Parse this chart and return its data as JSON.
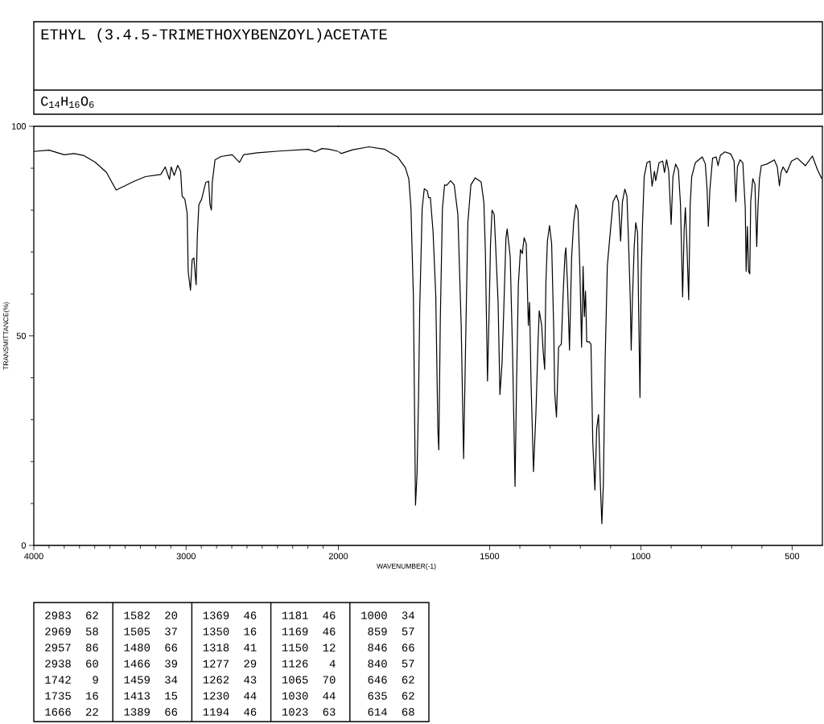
{
  "chart_data": [
    {
      "type": "line",
      "title": "ETHYL (3.4.5-TRIMETHOXYBENZOYL)ACETATE",
      "subtitle": "C$_{14}$H$_{16}$O$_{6}$",
      "ylabel": "TRANSMITTANCE(%)",
      "xlim": [
        4000,
        2000
      ],
      "ylim": [
        0,
        100
      ],
      "xticks": [
        4000,
        3000,
        2000
      ],
      "yticks": [
        0,
        50,
        100
      ],
      "marker": "none",
      "line_style": "solid",
      "series": [
        {
          "color": "#000000",
          "x": [
            4000,
            3900,
            3800,
            3736,
            3670,
            3596,
            3523,
            3459,
            3413,
            3340,
            3266,
            3166,
            3137,
            3109,
            3098,
            3078,
            3055,
            3036,
            3026,
            3008,
            2993,
            2986,
            2971,
            2960,
            2949,
            2934,
            2926,
            2916,
            2898,
            2871,
            2852,
            2843,
            2834,
            2828,
            2810,
            2770,
            2697,
            2649,
            2623,
            2530,
            2383,
            2199,
            2153,
            2107,
            2058,
            2000
          ],
          "values": [
            94.0,
            94.3,
            93.2,
            93.5,
            93.0,
            91.4,
            89.0,
            84.8,
            85.6,
            86.9,
            88.0,
            88.5,
            90.3,
            87.3,
            90.3,
            88.3,
            90.7,
            89.3,
            83.3,
            82.6,
            79.3,
            65.3,
            60.9,
            68.2,
            68.6,
            62.2,
            73.9,
            81.3,
            82.6,
            86.6,
            86.9,
            81.3,
            80.0,
            86.6,
            92.0,
            92.8,
            93.2,
            91.4,
            93.2,
            93.7,
            94.1,
            94.5,
            93.9,
            94.7,
            94.5,
            94.0
          ]
        }
      ],
      "annotations": [
        "2983",
        "62",
        "2969",
        "58",
        "2957",
        "86",
        "2938",
        "60",
        "1742",
        "9",
        "1735",
        "16",
        "1666",
        "22",
        "1582",
        "20",
        "1505",
        "37",
        "1480",
        "66",
        "1466",
        "39",
        "1459",
        "34",
        "1413",
        "15",
        "1389",
        "66",
        "1369",
        "46",
        "1350",
        "16",
        "1318",
        "41",
        "1277",
        "29",
        "1262",
        "43",
        "1230",
        "44",
        "1194",
        "46",
        "1181",
        "46",
        "1169",
        "46",
        "1150",
        "12",
        "1126",
        "4",
        "1065",
        "70",
        "1030",
        "44",
        "1023",
        "63",
        "1000",
        "34",
        "859",
        "57",
        "846",
        "66",
        "840",
        "57",
        "646",
        "62",
        "635",
        "62",
        "614",
        "68"
      ]
    },
    {
      "type": "line",
      "xlabel": "WAVENUMBER(-1)",
      "xlim": [
        2000,
        400
      ],
      "ylim": [
        0,
        100
      ],
      "xticks": [
        1500,
        1000,
        500
      ],
      "tick_labels": "x",
      "marker": "none",
      "line_style": "solid",
      "series": [
        {
          "color": "#000000",
          "x": [
            2000,
            1991,
            1952,
            1899,
            1846,
            1803,
            1779,
            1767,
            1760,
            1752,
            1745,
            1740,
            1735,
            1731,
            1723,
            1716,
            1706,
            1702,
            1696,
            1687,
            1678,
            1671,
            1668,
            1663,
            1656,
            1649,
            1642,
            1629,
            1617,
            1605,
            1594,
            1586,
            1580,
            1572,
            1562,
            1548,
            1528,
            1519,
            1514,
            1507,
            1501,
            1497,
            1492,
            1485,
            1480,
            1472,
            1466,
            1459,
            1453,
            1446,
            1442,
            1432,
            1424,
            1416,
            1411,
            1405,
            1398,
            1392,
            1386,
            1379,
            1372,
            1368,
            1363,
            1355,
            1347,
            1340,
            1336,
            1328,
            1323,
            1318,
            1314,
            1309,
            1302,
            1295,
            1288,
            1285,
            1279,
            1272,
            1263,
            1257,
            1251,
            1248,
            1242,
            1236,
            1229,
            1222,
            1215,
            1208,
            1202,
            1196,
            1191,
            1187,
            1183,
            1179,
            1171,
            1165,
            1159,
            1152,
            1146,
            1140,
            1134,
            1129,
            1124,
            1118,
            1111,
            1103,
            1092,
            1081,
            1074,
            1067,
            1061,
            1053,
            1046,
            1040,
            1035,
            1032,
            1028,
            1022,
            1017,
            1011,
            1007,
            1003,
            999,
            995,
            989,
            980,
            970,
            963,
            955,
            951,
            940,
            928,
            922,
            915,
            908,
            900,
            894,
            885,
            876,
            869,
            862,
            857,
            853,
            848,
            842,
            837,
            832,
            820,
            797,
            787,
            781,
            777,
            772,
            763,
            751,
            745,
            737,
            722,
            703,
            692,
            686,
            681,
            672,
            663,
            655,
            652,
            648,
            644,
            640,
            637,
            630,
            623,
            617,
            613,
            608,
            602,
            583,
            559,
            549,
            542,
            537,
            530,
            518,
            502,
            483,
            456,
            433,
            416,
            402
          ],
          "values": [
            94.0,
            93.5,
            94.4,
            95.1,
            94.5,
            92.6,
            90.2,
            87.4,
            80.4,
            59.5,
            9.6,
            16.9,
            35.0,
            56.7,
            80.4,
            85.1,
            84.6,
            83.0,
            83.0,
            74.9,
            59.5,
            27.3,
            22.8,
            53.9,
            80.4,
            86.0,
            85.9,
            87.0,
            86.0,
            79.0,
            52.5,
            20.7,
            45.5,
            77.0,
            86.0,
            87.7,
            86.7,
            81.8,
            69.9,
            39.2,
            58.0,
            72.0,
            80.0,
            79.0,
            71.3,
            58.0,
            36.0,
            43.4,
            56.7,
            73.4,
            75.5,
            68.9,
            45.5,
            14.1,
            38.6,
            62.3,
            70.6,
            69.6,
            73.4,
            72.0,
            52.5,
            58.0,
            38.6,
            17.6,
            31.6,
            48.3,
            56.0,
            52.5,
            46.3,
            42.0,
            62.6,
            72.6,
            76.3,
            72.0,
            51.2,
            36.6,
            30.6,
            47.3,
            48.0,
            60.0,
            69.3,
            71.0,
            61.3,
            46.6,
            68.6,
            77.3,
            81.3,
            80.0,
            66.6,
            47.3,
            66.6,
            54.6,
            60.7,
            48.6,
            48.6,
            48.0,
            24.6,
            13.2,
            27.9,
            31.2,
            14.6,
            5.2,
            14.6,
            44.6,
            66.6,
            73.3,
            82.0,
            83.6,
            82.0,
            72.6,
            82.0,
            85.0,
            83.3,
            70.6,
            58.6,
            46.6,
            58.6,
            71.3,
            77.0,
            74.7,
            54.6,
            35.3,
            64.0,
            76.0,
            88.0,
            91.3,
            91.7,
            85.7,
            89.3,
            87.0,
            91.3,
            91.7,
            89.0,
            92.0,
            89.3,
            76.6,
            88.0,
            91.0,
            89.6,
            81.3,
            59.3,
            75.3,
            80.6,
            72.0,
            58.6,
            81.3,
            88.0,
            91.3,
            92.7,
            91.0,
            84.8,
            76.1,
            84.8,
            92.4,
            92.7,
            90.6,
            93.1,
            93.9,
            93.4,
            91.7,
            82.0,
            90.3,
            92.0,
            91.3,
            80.6,
            65.4,
            76.1,
            65.4,
            64.8,
            82.0,
            87.5,
            86.2,
            71.3,
            80.6,
            87.5,
            90.6,
            91.0,
            92.0,
            90.3,
            85.8,
            88.9,
            90.3,
            88.9,
            91.7,
            92.4,
            90.6,
            92.9,
            89.6,
            87.5
          ]
        }
      ]
    }
  ]
}
